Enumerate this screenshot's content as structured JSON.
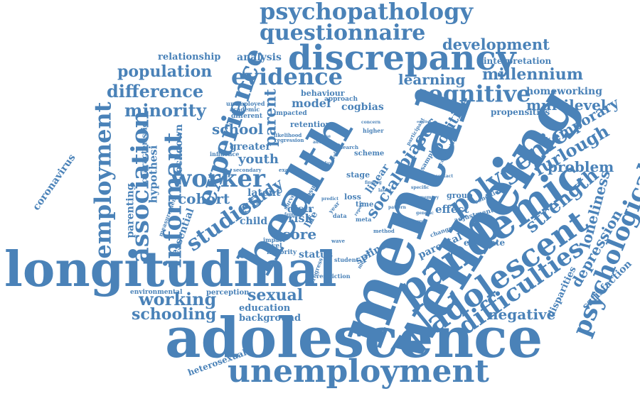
{
  "color": "#4a82b8",
  "background": "#ffffff",
  "words": [
    {
      "text": "adolescence",
      "size": "xl"
    },
    {
      "text": "longitudinal",
      "size": "xl"
    },
    {
      "text": "unemployment",
      "size": "l"
    },
    {
      "text": "mental",
      "size": "xl"
    },
    {
      "text": "health",
      "size": "l"
    },
    {
      "text": "wellbeing",
      "size": "xl"
    },
    {
      "text": "pandemic",
      "size": "l"
    },
    {
      "text": "adolescent",
      "size": "l"
    },
    {
      "text": "psychological",
      "size": "m"
    },
    {
      "text": "difficulties",
      "size": "m"
    },
    {
      "text": "discrepancy",
      "size": "l"
    },
    {
      "text": "psychopathology",
      "size": "m"
    },
    {
      "text": "questionnaire",
      "size": "m"
    },
    {
      "text": "evidence",
      "size": "m"
    },
    {
      "text": "cognitive",
      "size": "m"
    },
    {
      "text": "development",
      "size": "s"
    },
    {
      "text": "millennium",
      "size": "s"
    },
    {
      "text": "experience",
      "size": "m"
    },
    {
      "text": "employment",
      "size": "m"
    },
    {
      "text": "association",
      "size": "m"
    },
    {
      "text": "informant",
      "size": "m"
    },
    {
      "text": "worker",
      "size": "m"
    },
    {
      "text": "polygenic",
      "size": "m"
    },
    {
      "text": "population",
      "size": "s"
    },
    {
      "text": "difference",
      "size": "s"
    },
    {
      "text": "minority",
      "size": "s"
    },
    {
      "text": "studies",
      "size": "m"
    },
    {
      "text": "working",
      "size": "s"
    },
    {
      "text": "schooling",
      "size": "s"
    },
    {
      "text": "sexual",
      "size": "s"
    },
    {
      "text": "depression",
      "size": "s"
    },
    {
      "text": "loneliness",
      "size": "s"
    },
    {
      "text": "strength",
      "size": "s"
    },
    {
      "text": "furlough",
      "size": "s"
    },
    {
      "text": "temporary",
      "size": "s"
    },
    {
      "text": "problem",
      "size": "s"
    },
    {
      "text": "satisfaction",
      "size": "xs"
    },
    {
      "text": "disparities",
      "size": "xs"
    },
    {
      "text": "negative",
      "size": "s"
    },
    {
      "text": "biases",
      "size": "s"
    },
    {
      "text": "positive",
      "size": "s"
    },
    {
      "text": "social",
      "size": "s"
    },
    {
      "text": "learning",
      "size": "s"
    },
    {
      "text": "multilevel",
      "size": "s"
    },
    {
      "text": "homeworking",
      "size": "xs"
    },
    {
      "text": "propensities",
      "size": "xs"
    },
    {
      "text": "interpretation",
      "size": "xs"
    },
    {
      "text": "relationship",
      "size": "xs"
    },
    {
      "text": "analysis",
      "size": "xs"
    },
    {
      "text": "parent",
      "size": "s"
    },
    {
      "text": "study",
      "size": "s"
    },
    {
      "text": "cohort",
      "size": "s"
    },
    {
      "text": "school",
      "size": "s"
    },
    {
      "text": "model",
      "size": "s"
    },
    {
      "text": "cogbias",
      "size": "xs"
    },
    {
      "text": "score",
      "size": "s"
    },
    {
      "text": "youth",
      "size": "s"
    },
    {
      "text": "lockdown",
      "size": "xs"
    },
    {
      "text": "coronavirus",
      "size": "xs"
    },
    {
      "text": "hypothesi",
      "size": "xs"
    },
    {
      "text": "parenting",
      "size": "xs"
    },
    {
      "text": "characteristic",
      "size": "xs"
    },
    {
      "text": "essential",
      "size": "xs"
    },
    {
      "text": "environmental",
      "size": "xxs"
    },
    {
      "text": "perception",
      "size": "xxs"
    },
    {
      "text": "education",
      "size": "xs"
    },
    {
      "text": "background",
      "size": "xs"
    },
    {
      "text": "heterosexual",
      "size": "xs"
    },
    {
      "text": "status",
      "size": "xs"
    },
    {
      "text": "spline",
      "size": "xs"
    },
    {
      "text": "estimate",
      "size": "xxs"
    },
    {
      "text": "parental",
      "size": "xs"
    },
    {
      "text": "effect",
      "size": "xs"
    },
    {
      "text": "risk",
      "size": "xs"
    },
    {
      "text": "child",
      "size": "xs"
    },
    {
      "text": "latent",
      "size": "xs"
    },
    {
      "text": "greater",
      "size": "xs"
    },
    {
      "text": "retention",
      "size": "xxs"
    },
    {
      "text": "behaviour",
      "size": "xxs"
    },
    {
      "text": "approach",
      "size": "xxs"
    },
    {
      "text": "scheme",
      "size": "xxs"
    },
    {
      "text": "stage",
      "size": "xxs"
    },
    {
      "text": "linear",
      "size": "xs"
    },
    {
      "text": "loss",
      "size": "xxs"
    },
    {
      "text": "time",
      "size": "xxs"
    },
    {
      "text": "group",
      "size": "xxs"
    },
    {
      "text": "adjustment",
      "size": "xxs"
    },
    {
      "text": "sample",
      "size": "xxs"
    },
    {
      "text": "conditional",
      "size": "xxs"
    },
    {
      "text": "majority",
      "size": "xxs"
    },
    {
      "text": "student",
      "size": "xxs"
    },
    {
      "text": "restriction",
      "size": "xxs"
    },
    {
      "text": "impacted",
      "size": "xxs"
    },
    {
      "text": "different",
      "size": "xxs"
    },
    {
      "text": "academic",
      "size": "xxs"
    },
    {
      "text": "unemployed",
      "size": "xxs"
    },
    {
      "text": "influence",
      "size": "xxs"
    },
    {
      "text": "secondary",
      "size": "xxs"
    },
    {
      "text": "measurement",
      "size": "xxs"
    },
    {
      "text": "level",
      "size": "xxs"
    },
    {
      "text": "impact",
      "size": "xxs"
    },
    {
      "text": "distr",
      "size": "xs"
    },
    {
      "text": "closure",
      "size": "xxs"
    },
    {
      "text": "survey",
      "size": "xxs"
    },
    {
      "text": "march",
      "size": "xxs"
    },
    {
      "text": "life",
      "size": "xs"
    },
    {
      "text": "meta",
      "size": "xxs"
    },
    {
      "text": "higher",
      "size": "xxs"
    },
    {
      "text": "progress",
      "size": "xxs"
    },
    {
      "text": "wave",
      "size": "xxs"
    },
    {
      "text": "data",
      "size": "xxs"
    },
    {
      "text": "year",
      "size": "xxs"
    },
    {
      "text": "method",
      "size": "xxs"
    },
    {
      "text": "change",
      "size": "xxs"
    },
    {
      "text": "female",
      "size": "xxs"
    },
    {
      "text": "weekday",
      "size": "xxs"
    },
    {
      "text": "regression",
      "size": "xxs"
    },
    {
      "text": "likelihood",
      "size": "xxs"
    },
    {
      "text": "examine",
      "size": "xxs"
    },
    {
      "text": "research",
      "size": "xxs"
    },
    {
      "text": "adverse",
      "size": "xxs"
    },
    {
      "text": "analyse",
      "size": "xxs"
    },
    {
      "text": "finding",
      "size": "xxs"
    },
    {
      "text": "latest",
      "size": "xxs"
    },
    {
      "text": "specific",
      "size": "xxs"
    },
    {
      "text": "identity",
      "size": "xxs"
    },
    {
      "text": "participant",
      "size": "xxs"
    },
    {
      "text": "conclusion",
      "size": "xxs"
    },
    {
      "text": "genetic",
      "size": "xxs"
    },
    {
      "text": "memory",
      "size": "xxs"
    },
    {
      "text": "measure",
      "size": "xxs"
    },
    {
      "text": "english",
      "size": "xxs"
    },
    {
      "text": "concern",
      "size": "xxs"
    },
    {
      "text": "report",
      "size": "xxs"
    },
    {
      "text": "reform",
      "size": "xxs"
    },
    {
      "text": "predict",
      "size": "xxs"
    },
    {
      "text": "pattern",
      "size": "xxs"
    },
    {
      "text": "contact",
      "size": "xxs"
    },
    {
      "text": "exposure",
      "size": "xxs"
    },
    {
      "text": "context",
      "size": "xxs"
    }
  ]
}
